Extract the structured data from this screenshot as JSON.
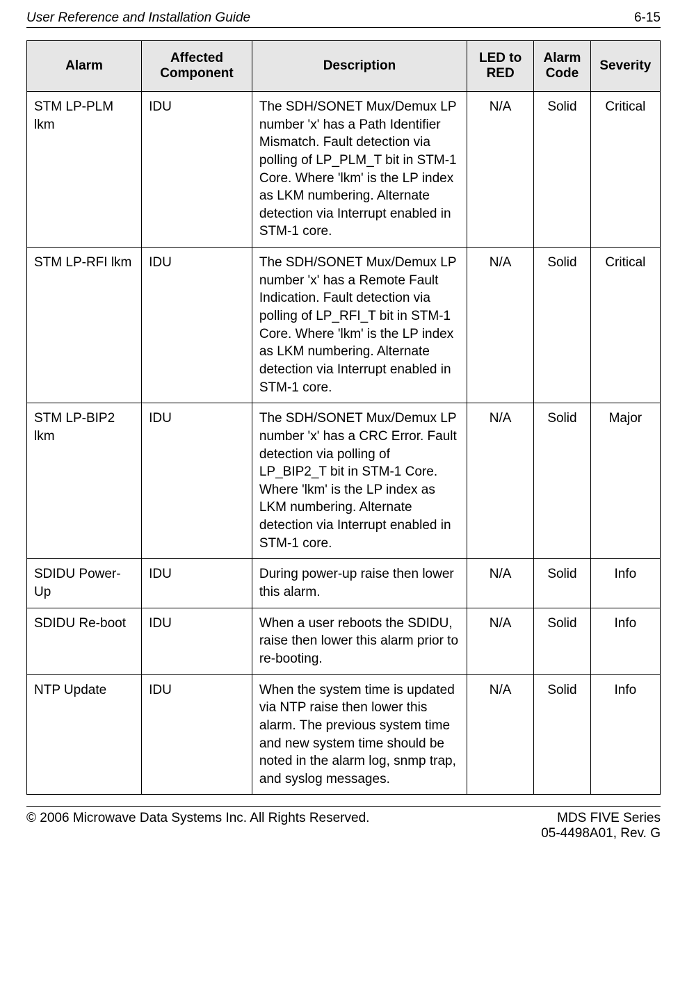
{
  "header": {
    "title": "User Reference and Installation Guide",
    "pageNumber": "6-15"
  },
  "table": {
    "columns": {
      "alarm": "Alarm",
      "affected": "Affected Component",
      "description": "Description",
      "led": "LED to RED",
      "code": "Alarm Code",
      "severity": "Severity"
    },
    "rows": [
      {
        "alarm": "STM LP-PLM lkm",
        "affected": "IDU",
        "description": "The SDH/SONET Mux/Demux LP number 'x' has a Path Identifier Mismatch. Fault detection via polling of LP_PLM_T bit in STM-1 Core. Where 'lkm' is the LP index as LKM numbering. Alternate detection via Interrupt enabled in STM-1 core.",
        "led": "N/A",
        "code": "Solid",
        "severity": "Critical"
      },
      {
        "alarm": "STM LP-RFI lkm",
        "affected": "IDU",
        "description": "The SDH/SONET Mux/Demux LP number 'x' has a Remote Fault Indication. Fault detection via polling of LP_RFI_T bit in STM-1 Core. Where 'lkm' is the LP index as LKM numbering. Alternate detection via Interrupt enabled in STM-1 core.",
        "led": "N/A",
        "code": "Solid",
        "severity": "Critical"
      },
      {
        "alarm": "STM LP-BIP2 lkm",
        "affected": "IDU",
        "description": "The SDH/SONET Mux/Demux LP number 'x' has a CRC Error. Fault detection via polling of LP_BIP2_T bit in STM-1 Core. Where 'lkm' is the LP index as LKM numbering. Alternate detection via Interrupt enabled in STM-1 core.",
        "led": "N/A",
        "code": "Solid",
        "severity": "Major"
      },
      {
        "alarm": "SDIDU Power-Up",
        "affected": "IDU",
        "description": "During power-up raise then lower this alarm.",
        "led": "N/A",
        "code": "Solid",
        "severity": "Info"
      },
      {
        "alarm": "SDIDU Re-boot",
        "affected": "IDU",
        "description": "When a user reboots the SDIDU, raise then lower this alarm prior to re-booting.",
        "led": "N/A",
        "code": "Solid",
        "severity": "Info"
      },
      {
        "alarm": "NTP Update",
        "affected": "IDU",
        "description": "When the system time is updated via NTP raise then lower this alarm. The previous system time and new system time should be noted in the alarm log, snmp trap, and syslog messages.",
        "led": "N/A",
        "code": "Solid",
        "severity": "Info"
      }
    ]
  },
  "footer": {
    "left": "© 2006 Microwave Data Systems Inc.  All Rights Reserved.",
    "rightLine1": "MDS FIVE Series",
    "rightLine2": "05-4498A01, Rev. G"
  }
}
